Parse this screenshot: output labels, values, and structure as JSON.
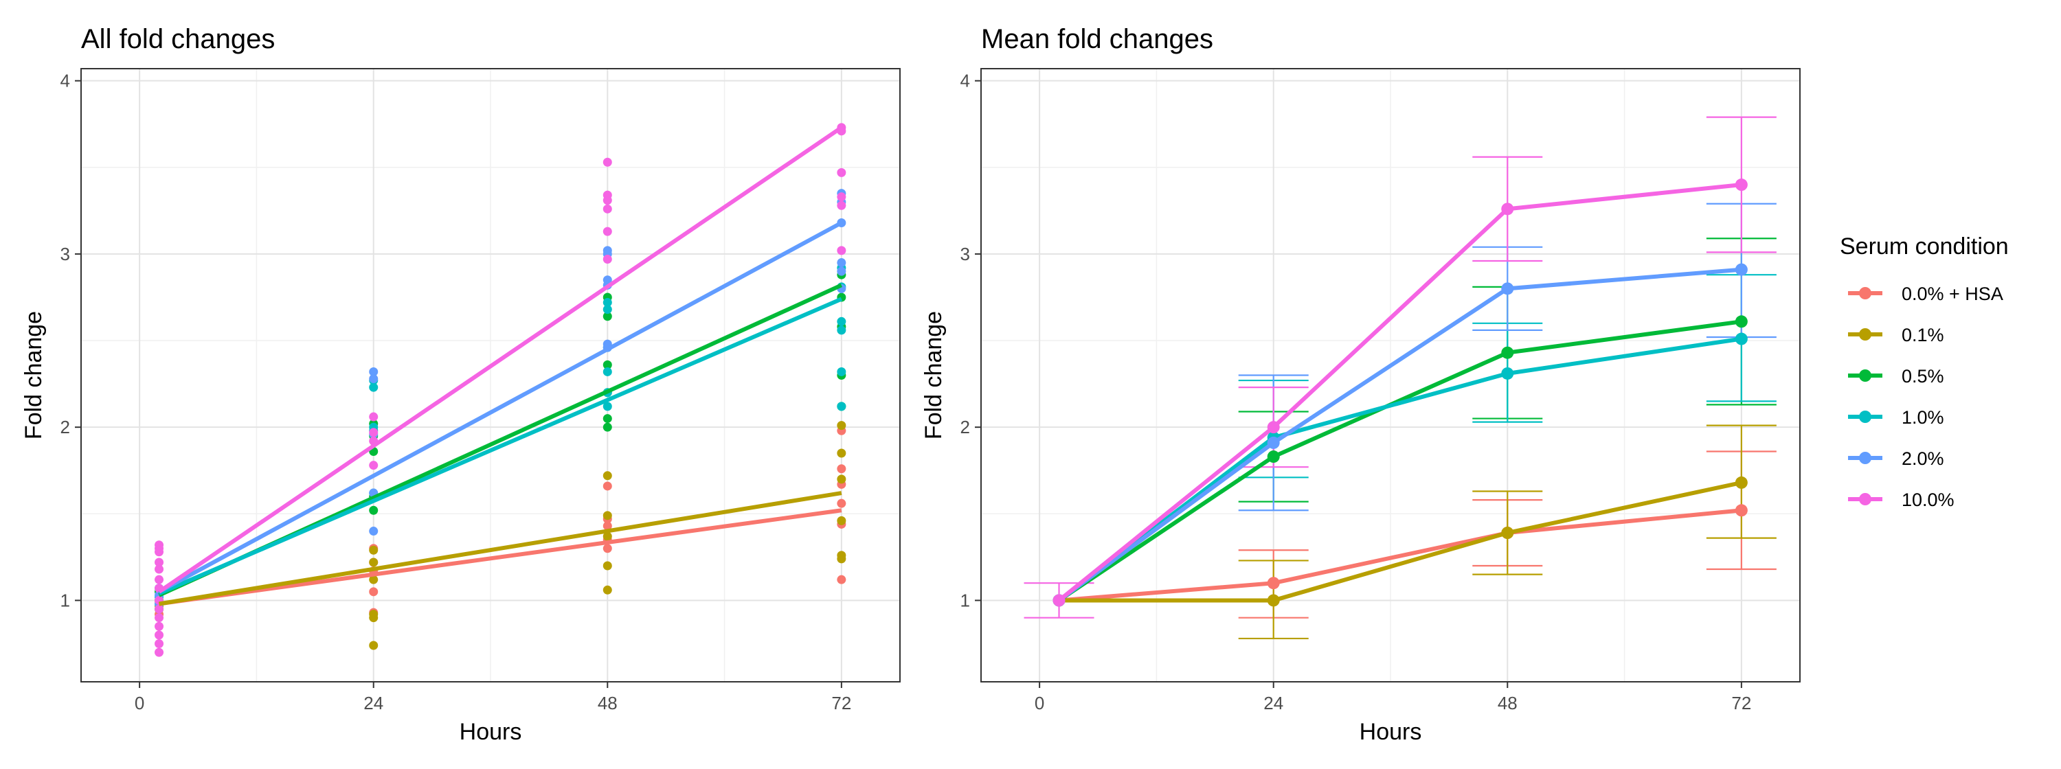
{
  "legend": {
    "title": "Serum condition",
    "position": "right",
    "entries": [
      "0.0% + HSA",
      "0.1%",
      "0.5%",
      "1.0%",
      "2.0%",
      "10.0%"
    ]
  },
  "colors": {
    "0.0% + HSA": "#F8766D",
    "0.1%": "#B79F00",
    "0.5%": "#00BA38",
    "1.0%": "#00BFC4",
    "2.0%": "#619CFF",
    "10.0%": "#F564E3"
  },
  "chart_data": [
    {
      "type": "scatter",
      "title": "All fold changes",
      "xlabel": "Hours",
      "ylabel": "Fold change",
      "xlim": [
        -6,
        78
      ],
      "ylim": [
        0.53,
        4.07
      ],
      "xticks": [
        0,
        24,
        48,
        72
      ],
      "yticks": [
        1,
        2,
        3,
        4
      ],
      "grid": true,
      "series": [
        {
          "name": "0.0% + HSA",
          "points": [
            [
              2,
              0.98
            ],
            [
              2,
              0.95
            ],
            [
              2,
              1.0
            ],
            [
              2,
              0.92
            ],
            [
              24,
              1.3
            ],
            [
              24,
              1.22
            ],
            [
              24,
              1.17
            ],
            [
              24,
              1.05
            ],
            [
              24,
              0.93
            ],
            [
              48,
              1.66
            ],
            [
              48,
              1.47
            ],
            [
              48,
              1.43
            ],
            [
              48,
              1.35
            ],
            [
              48,
              1.3
            ],
            [
              72,
              1.98
            ],
            [
              72,
              1.76
            ],
            [
              72,
              1.67
            ],
            [
              72,
              1.56
            ],
            [
              72,
              1.44
            ],
            [
              72,
              1.12
            ]
          ],
          "fit": [
            [
              2,
              0.98
            ],
            [
              72,
              1.52
            ]
          ]
        },
        {
          "name": "0.1%",
          "points": [
            [
              2,
              1.0
            ],
            [
              2,
              0.97
            ],
            [
              2,
              0.95
            ],
            [
              24,
              1.29
            ],
            [
              24,
              1.22
            ],
            [
              24,
              1.12
            ],
            [
              24,
              0.92
            ],
            [
              24,
              0.9
            ],
            [
              24,
              0.74
            ],
            [
              48,
              1.72
            ],
            [
              48,
              1.49
            ],
            [
              48,
              1.37
            ],
            [
              48,
              1.2
            ],
            [
              48,
              1.06
            ],
            [
              72,
              2.01
            ],
            [
              72,
              1.85
            ],
            [
              72,
              1.7
            ],
            [
              72,
              1.46
            ],
            [
              72,
              1.26
            ],
            [
              72,
              1.24
            ]
          ],
          "fit": [
            [
              2,
              0.98
            ],
            [
              72,
              1.62
            ]
          ]
        },
        {
          "name": "0.5%",
          "points": [
            [
              2,
              1.05
            ],
            [
              2,
              1.0
            ],
            [
              2,
              0.95
            ],
            [
              24,
              2.02
            ],
            [
              24,
              1.95
            ],
            [
              24,
              1.86
            ],
            [
              24,
              1.6
            ],
            [
              24,
              1.52
            ],
            [
              48,
              2.75
            ],
            [
              48,
              2.64
            ],
            [
              48,
              2.36
            ],
            [
              48,
              2.2
            ],
            [
              48,
              2.05
            ],
            [
              48,
              2.0
            ],
            [
              72,
              2.88
            ],
            [
              72,
              2.75
            ],
            [
              72,
              2.58
            ],
            [
              72,
              2.3
            ],
            [
              72,
              2.12
            ]
          ],
          "fit": [
            [
              2,
              1.03
            ],
            [
              72,
              2.82
            ]
          ]
        },
        {
          "name": "1.0%",
          "points": [
            [
              2,
              1.07
            ],
            [
              2,
              1.02
            ],
            [
              2,
              0.98
            ],
            [
              24,
              2.27
            ],
            [
              24,
              2.23
            ],
            [
              24,
              2.0
            ],
            [
              24,
              1.98
            ],
            [
              24,
              1.62
            ],
            [
              48,
              2.72
            ],
            [
              48,
              2.68
            ],
            [
              48,
              2.46
            ],
            [
              48,
              2.32
            ],
            [
              48,
              2.2
            ],
            [
              48,
              2.12
            ],
            [
              72,
              2.92
            ],
            [
              72,
              2.81
            ],
            [
              72,
              2.61
            ],
            [
              72,
              2.56
            ],
            [
              72,
              2.32
            ],
            [
              72,
              2.12
            ]
          ],
          "fit": [
            [
              2,
              1.04
            ],
            [
              72,
              2.74
            ]
          ]
        },
        {
          "name": "2.0%",
          "points": [
            [
              2,
              1.07
            ],
            [
              2,
              1.03
            ],
            [
              2,
              0.98
            ],
            [
              24,
              2.32
            ],
            [
              24,
              2.28
            ],
            [
              24,
              1.96
            ],
            [
              24,
              1.62
            ],
            [
              24,
              1.4
            ],
            [
              48,
              3.02
            ],
            [
              48,
              3.0
            ],
            [
              48,
              2.85
            ],
            [
              48,
              2.82
            ],
            [
              48,
              2.48
            ],
            [
              48,
              2.46
            ],
            [
              72,
              3.35
            ],
            [
              72,
              3.3
            ],
            [
              72,
              3.18
            ],
            [
              72,
              2.95
            ],
            [
              72,
              2.9
            ],
            [
              72,
              2.8
            ]
          ],
          "fit": [
            [
              2,
              1.05
            ],
            [
              72,
              3.18
            ]
          ]
        },
        {
          "name": "10.0%",
          "points": [
            [
              2,
              1.32
            ],
            [
              2,
              1.3
            ],
            [
              2,
              1.28
            ],
            [
              2,
              1.22
            ],
            [
              2,
              1.18
            ],
            [
              2,
              1.12
            ],
            [
              2,
              1.07
            ],
            [
              2,
              1.0
            ],
            [
              2,
              0.95
            ],
            [
              2,
              0.9
            ],
            [
              2,
              0.85
            ],
            [
              2,
              0.8
            ],
            [
              2,
              0.75
            ],
            [
              2,
              0.7
            ],
            [
              24,
              2.06
            ],
            [
              24,
              1.97
            ],
            [
              24,
              1.92
            ],
            [
              24,
              1.78
            ],
            [
              48,
              3.53
            ],
            [
              48,
              3.34
            ],
            [
              48,
              3.31
            ],
            [
              48,
              3.26
            ],
            [
              48,
              3.13
            ],
            [
              48,
              2.97
            ],
            [
              72,
              3.73
            ],
            [
              72,
              3.71
            ],
            [
              72,
              3.47
            ],
            [
              72,
              3.33
            ],
            [
              72,
              3.28
            ],
            [
              72,
              3.02
            ]
          ],
          "fit": [
            [
              2,
              1.05
            ],
            [
              72,
              3.73
            ]
          ]
        }
      ]
    },
    {
      "type": "line",
      "title": "Mean fold changes",
      "xlabel": "Hours",
      "ylabel": "Fold change",
      "xlim": [
        -6,
        78
      ],
      "ylim": [
        0.53,
        4.07
      ],
      "xticks": [
        0,
        24,
        48,
        72
      ],
      "yticks": [
        1,
        2,
        3,
        4
      ],
      "grid": true,
      "error_bars": true,
      "x": [
        2,
        24,
        48,
        72
      ],
      "series": [
        {
          "name": "0.0% + HSA",
          "values": [
            1.0,
            1.1,
            1.39,
            1.52
          ],
          "lower": [
            1.0,
            0.9,
            1.2,
            1.18
          ],
          "upper": [
            1.0,
            1.29,
            1.58,
            1.86
          ]
        },
        {
          "name": "0.1%",
          "values": [
            1.0,
            1.0,
            1.39,
            1.68
          ],
          "lower": [
            1.0,
            0.78,
            1.15,
            1.36
          ],
          "upper": [
            1.0,
            1.23,
            1.63,
            2.01
          ]
        },
        {
          "name": "0.5%",
          "values": [
            1.0,
            1.83,
            2.43,
            2.61
          ],
          "lower": [
            1.0,
            1.57,
            2.05,
            2.13
          ],
          "upper": [
            1.0,
            2.09,
            2.81,
            3.09
          ]
        },
        {
          "name": "1.0%",
          "values": [
            1.0,
            1.94,
            2.31,
            2.51
          ],
          "lower": [
            1.0,
            1.71,
            2.03,
            2.15
          ],
          "upper": [
            1.0,
            2.27,
            2.6,
            2.88
          ]
        },
        {
          "name": "2.0%",
          "values": [
            1.0,
            1.91,
            2.8,
            2.91
          ],
          "lower": [
            1.0,
            1.52,
            2.56,
            2.52
          ],
          "upper": [
            1.0,
            2.3,
            3.04,
            3.29
          ]
        },
        {
          "name": "10.0%",
          "values": [
            1.0,
            2.0,
            3.26,
            3.4
          ],
          "lower": [
            0.9,
            1.77,
            2.96,
            3.01
          ],
          "upper": [
            1.1,
            2.23,
            3.56,
            3.79
          ]
        }
      ]
    }
  ]
}
